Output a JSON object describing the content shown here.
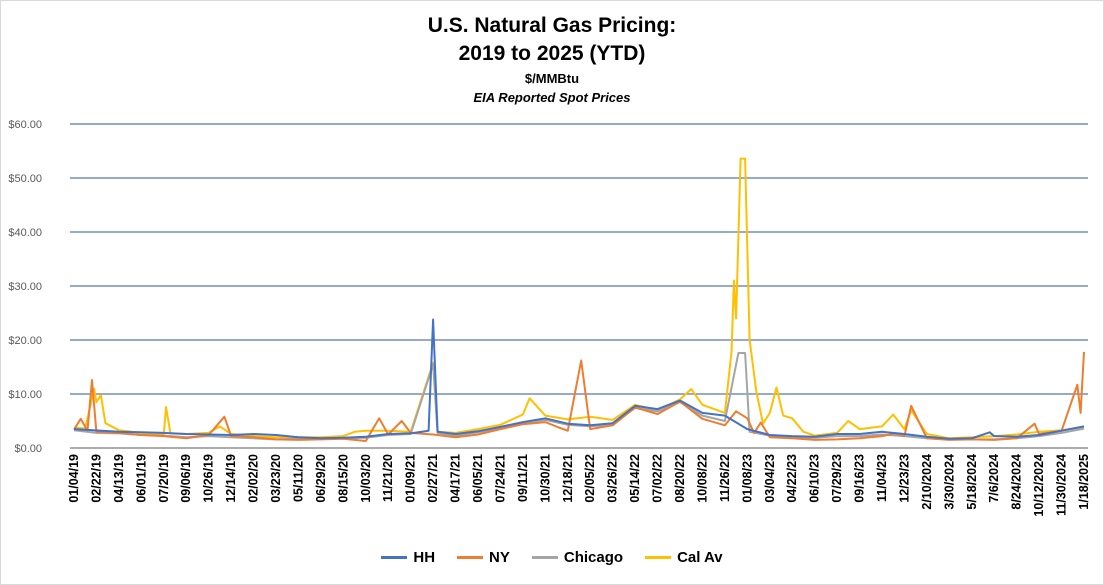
{
  "colors": {
    "HH": "#4472c4",
    "NY": "#ed7d31",
    "Chicago": "#a5a5a5",
    "Cal Av": "#ffc000",
    "grid": "#2f5597"
  },
  "chart_data": {
    "type": "line",
    "title": "U.S. Natural Gas Pricing:",
    "title_line2": "2019 to 2025 (YTD)",
    "subtitle": "$/MMBtu",
    "subtitle2": "EIA Reported Spot Prices",
    "ylim": [
      0,
      60
    ],
    "yticks": [
      "$0.00",
      "$10.00",
      "$20.00",
      "$30.00",
      "$40.00",
      "$50.00",
      "$60.00"
    ],
    "grid": true,
    "legend_position": "bottom",
    "xticks": [
      "01/04/19",
      "02/22/19",
      "04/13/19",
      "06/01/19",
      "07/20/19",
      "09/06/19",
      "10/26/19",
      "12/14/19",
      "02/02/20",
      "03/23/20",
      "05/11/20",
      "06/29/20",
      "08/15/20",
      "10/03/20",
      "11/21/20",
      "01/09/21",
      "02/27/21",
      "04/17/21",
      "06/05/21",
      "07/24/21",
      "09/11/21",
      "10/30/21",
      "12/18/21",
      "02/05/22",
      "03/26/22",
      "05/14/22",
      "07/02/22",
      "08/20/22",
      "10/08/22",
      "11/26/22",
      "01/08/23",
      "03/04/23",
      "04/22/23",
      "06/10/23",
      "07/29/23",
      "09/16/23",
      "11/04/23",
      "12/23/23",
      "2/10/2024",
      "3/30/2024",
      "5/18/2024",
      "7/6/2024",
      "8/24/2024",
      "10/12/2024",
      "11/30/2024",
      "1/18/2025"
    ],
    "series": [
      {
        "name": "HH",
        "points": [
          [
            0,
            3.5
          ],
          [
            2,
            3.0
          ],
          [
            3,
            2.9
          ],
          [
            4,
            2.8
          ],
          [
            5,
            2.6
          ],
          [
            6,
            2.5
          ],
          [
            7,
            2.4
          ],
          [
            8,
            2.6
          ],
          [
            9,
            2.4
          ],
          [
            10,
            2.0
          ],
          [
            11,
            1.8
          ],
          [
            12,
            1.9
          ],
          [
            13,
            2.1
          ],
          [
            14,
            2.6
          ],
          [
            15,
            2.7
          ],
          [
            15.8,
            3.2
          ],
          [
            16,
            23.8
          ],
          [
            16.2,
            3.0
          ],
          [
            17,
            2.6
          ],
          [
            18,
            3.1
          ],
          [
            19,
            3.9
          ],
          [
            20,
            4.8
          ],
          [
            21,
            5.5
          ],
          [
            22,
            4.5
          ],
          [
            23,
            4.2
          ],
          [
            24,
            4.6
          ],
          [
            25,
            7.8
          ],
          [
            26,
            7.2
          ],
          [
            27,
            8.8
          ],
          [
            28,
            6.5
          ],
          [
            29,
            6.0
          ],
          [
            30,
            3.5
          ],
          [
            31,
            2.4
          ],
          [
            32,
            2.2
          ],
          [
            33,
            2.1
          ],
          [
            34,
            2.6
          ],
          [
            35,
            2.6
          ],
          [
            36,
            3.0
          ],
          [
            37,
            2.6
          ],
          [
            38,
            2.1
          ],
          [
            39,
            1.7
          ],
          [
            40,
            1.8
          ],
          [
            40.8,
            2.9
          ],
          [
            41,
            2.2
          ],
          [
            42,
            2.1
          ],
          [
            43,
            2.4
          ],
          [
            44,
            3.2
          ],
          [
            45,
            4.0
          ]
        ]
      },
      {
        "name": "NY",
        "points": [
          [
            0,
            3.4
          ],
          [
            0.3,
            5.4
          ],
          [
            0.6,
            3.2
          ],
          [
            0.8,
            12.6
          ],
          [
            1,
            3.0
          ],
          [
            2,
            2.8
          ],
          [
            3,
            2.4
          ],
          [
            4,
            2.2
          ],
          [
            5,
            1.8
          ],
          [
            6,
            2.4
          ],
          [
            6.7,
            5.8
          ],
          [
            7,
            2.2
          ],
          [
            8,
            2.0
          ],
          [
            9,
            1.6
          ],
          [
            10,
            1.5
          ],
          [
            11,
            1.6
          ],
          [
            12,
            1.7
          ],
          [
            13,
            1.3
          ],
          [
            13.6,
            5.5
          ],
          [
            14,
            2.5
          ],
          [
            14.6,
            5.0
          ],
          [
            15,
            2.8
          ],
          [
            16,
            2.5
          ],
          [
            17,
            2.0
          ],
          [
            18,
            2.5
          ],
          [
            19,
            3.5
          ],
          [
            20,
            4.4
          ],
          [
            21,
            4.8
          ],
          [
            21.6,
            3.8
          ],
          [
            22,
            3.2
          ],
          [
            22.6,
            16.2
          ],
          [
            23,
            3.5
          ],
          [
            24,
            4.2
          ],
          [
            25,
            7.5
          ],
          [
            26,
            6.3
          ],
          [
            27,
            8.6
          ],
          [
            28,
            5.4
          ],
          [
            29,
            4.2
          ],
          [
            29.5,
            6.8
          ],
          [
            30,
            5.5
          ],
          [
            30.3,
            2.8
          ],
          [
            30.6,
            4.7
          ],
          [
            31,
            2.0
          ],
          [
            32,
            1.8
          ],
          [
            33,
            1.5
          ],
          [
            34,
            1.6
          ],
          [
            35,
            1.8
          ],
          [
            36,
            2.2
          ],
          [
            36.6,
            2.7
          ],
          [
            37,
            2.2
          ],
          [
            37.3,
            7.8
          ],
          [
            38,
            1.8
          ],
          [
            39,
            1.5
          ],
          [
            40,
            1.6
          ],
          [
            41,
            1.5
          ],
          [
            42,
            1.8
          ],
          [
            42.8,
            4.5
          ],
          [
            43,
            2.6
          ],
          [
            44,
            3.2
          ],
          [
            44.7,
            11.7
          ],
          [
            44.85,
            6.5
          ],
          [
            45,
            17.8
          ]
        ]
      },
      {
        "name": "Chicago",
        "points": [
          [
            0,
            3.3
          ],
          [
            1,
            2.8
          ],
          [
            2,
            2.7
          ],
          [
            3,
            2.4
          ],
          [
            4,
            2.3
          ],
          [
            5,
            2.0
          ],
          [
            6,
            2.2
          ],
          [
            7,
            2.0
          ],
          [
            8,
            1.8
          ],
          [
            9,
            1.6
          ],
          [
            10,
            1.7
          ],
          [
            11,
            1.8
          ],
          [
            12,
            1.8
          ],
          [
            13,
            1.9
          ],
          [
            14,
            2.4
          ],
          [
            15,
            2.6
          ],
          [
            16,
            15.5
          ],
          [
            16.2,
            2.8
          ],
          [
            17,
            2.3
          ],
          [
            18,
            2.9
          ],
          [
            19,
            3.7
          ],
          [
            20,
            4.6
          ],
          [
            21,
            5.2
          ],
          [
            22,
            4.3
          ],
          [
            23,
            4.0
          ],
          [
            24,
            4.4
          ],
          [
            25,
            7.4
          ],
          [
            26,
            6.8
          ],
          [
            27,
            8.5
          ],
          [
            28,
            6.0
          ],
          [
            29,
            5.0
          ],
          [
            29.6,
            17.6
          ],
          [
            29.9,
            17.6
          ],
          [
            30.1,
            3.0
          ],
          [
            31,
            2.3
          ],
          [
            32,
            2.0
          ],
          [
            33,
            1.9
          ],
          [
            34,
            2.2
          ],
          [
            35,
            2.2
          ],
          [
            36,
            2.5
          ],
          [
            37,
            2.2
          ],
          [
            38,
            1.8
          ],
          [
            39,
            1.6
          ],
          [
            40,
            1.6
          ],
          [
            41,
            1.6
          ],
          [
            42,
            1.8
          ],
          [
            43,
            2.2
          ],
          [
            44,
            2.8
          ],
          [
            45,
            3.6
          ]
        ]
      },
      {
        "name": "Cal Av",
        "points": [
          [
            0,
            3.8
          ],
          [
            0.5,
            3.6
          ],
          [
            0.9,
            11.0
          ],
          [
            1,
            8.5
          ],
          [
            1.2,
            9.8
          ],
          [
            1.4,
            4.6
          ],
          [
            2,
            3.3
          ],
          [
            3,
            2.8
          ],
          [
            4,
            2.5
          ],
          [
            4.1,
            7.6
          ],
          [
            4.3,
            2.7
          ],
          [
            5,
            2.6
          ],
          [
            6,
            2.8
          ],
          [
            6.5,
            4.0
          ],
          [
            7,
            2.6
          ],
          [
            8,
            2.2
          ],
          [
            9,
            2.0
          ],
          [
            10,
            2.0
          ],
          [
            11,
            2.0
          ],
          [
            12,
            2.2
          ],
          [
            12.5,
            3.0
          ],
          [
            13,
            3.2
          ],
          [
            14,
            3.2
          ],
          [
            15,
            3.0
          ],
          [
            16,
            15.8
          ],
          [
            16.2,
            3.0
          ],
          [
            17,
            2.8
          ],
          [
            18,
            3.5
          ],
          [
            19,
            4.3
          ],
          [
            20,
            6.2
          ],
          [
            20.3,
            9.2
          ],
          [
            21,
            6.0
          ],
          [
            22,
            5.3
          ],
          [
            23,
            5.8
          ],
          [
            24,
            5.2
          ],
          [
            25,
            8.0
          ],
          [
            26,
            7.0
          ],
          [
            27,
            9.0
          ],
          [
            27.5,
            10.9
          ],
          [
            28,
            8.0
          ],
          [
            29,
            6.5
          ],
          [
            29.3,
            18.0
          ],
          [
            29.4,
            31.0
          ],
          [
            29.5,
            24.0
          ],
          [
            29.7,
            53.6
          ],
          [
            29.9,
            53.6
          ],
          [
            30.1,
            20.0
          ],
          [
            30.4,
            10.5
          ],
          [
            30.7,
            4.5
          ],
          [
            31,
            6.5
          ],
          [
            31.3,
            11.2
          ],
          [
            31.6,
            6.0
          ],
          [
            32,
            5.5
          ],
          [
            32.5,
            3.0
          ],
          [
            33,
            2.3
          ],
          [
            34,
            2.8
          ],
          [
            34.5,
            5.0
          ],
          [
            35,
            3.5
          ],
          [
            36,
            4.0
          ],
          [
            36.5,
            6.2
          ],
          [
            37,
            3.5
          ],
          [
            37.3,
            7.0
          ],
          [
            38,
            2.6
          ],
          [
            39,
            1.8
          ],
          [
            40,
            2.0
          ],
          [
            41,
            2.2
          ],
          [
            42,
            2.5
          ],
          [
            43,
            3.0
          ],
          [
            44,
            3.3
          ],
          [
            45,
            3.9
          ]
        ]
      }
    ]
  }
}
